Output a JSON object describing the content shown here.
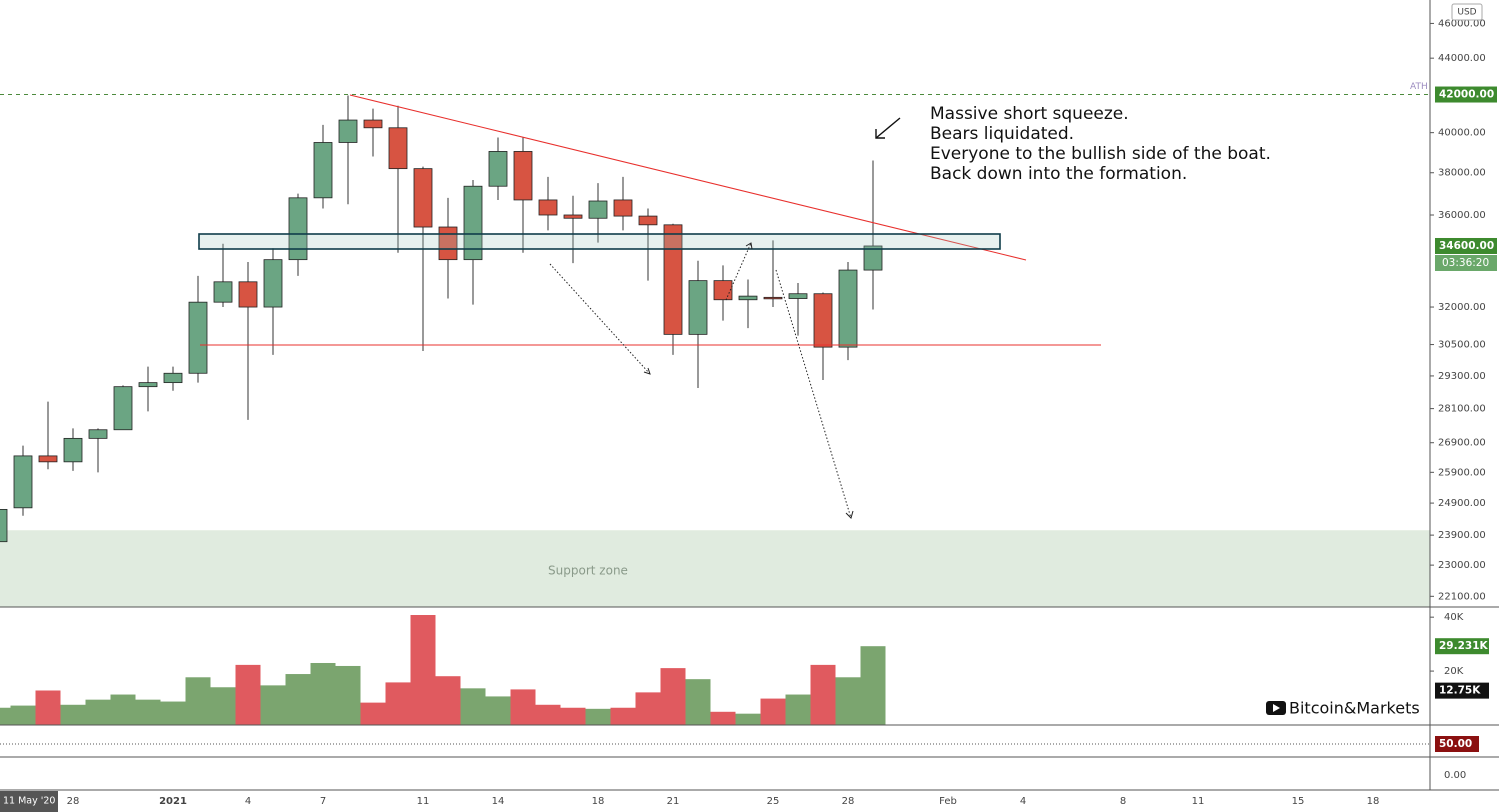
{
  "chart_data": {
    "type": "candlestick",
    "log_scale": true,
    "x": [
      "2020-12-25",
      "2020-12-26",
      "2020-12-27",
      "2020-12-28",
      "2020-12-29",
      "2020-12-30",
      "2020-12-31",
      "2021-01-01",
      "2021-01-02",
      "2021-01-03",
      "2021-01-04",
      "2021-01-05",
      "2021-01-06",
      "2021-01-07",
      "2021-01-08",
      "2021-01-09",
      "2021-01-10",
      "2021-01-11",
      "2021-01-12",
      "2021-01-13",
      "2021-01-14",
      "2021-01-15",
      "2021-01-16",
      "2021-01-17",
      "2021-01-18",
      "2021-01-19",
      "2021-01-20",
      "2021-01-21",
      "2021-01-22",
      "2021-01-23",
      "2021-01-24",
      "2021-01-25",
      "2021-01-26",
      "2021-01-27",
      "2021-01-28",
      "2021-01-29"
    ],
    "open": [
      23700,
      24750,
      26450,
      26250,
      27050,
      27350,
      28900,
      29050,
      29400,
      32200,
      33050,
      32000,
      34000,
      36800,
      39500,
      40650,
      40250,
      38200,
      35450,
      34000,
      37350,
      39050,
      36700,
      36000,
      35850,
      36700,
      35950,
      35550,
      30900,
      33100,
      32300,
      32400,
      32350,
      32550,
      30400,
      33550
    ],
    "high": [
      24800,
      26800,
      28350,
      27400,
      27400,
      28950,
      29650,
      29650,
      33300,
      34700,
      33900,
      34500,
      37000,
      40400,
      41950,
      41250,
      41400,
      38300,
      36800,
      37650,
      39750,
      39750,
      37800,
      36900,
      37500,
      37800,
      36300,
      35600,
      33950,
      33750,
      33150,
      34850,
      33000,
      32600,
      33900,
      38600
    ],
    "low": [
      23500,
      24500,
      26000,
      25950,
      25900,
      27350,
      28000,
      28750,
      29050,
      32000,
      27700,
      30100,
      33300,
      36300,
      36500,
      38800,
      34300,
      30250,
      32350,
      32100,
      36700,
      34300,
      35300,
      33850,
      34750,
      35300,
      33100,
      30100,
      28850,
      31450,
      31150,
      32000,
      30850,
      29150,
      29900,
      31900
    ],
    "close": [
      24700,
      26450,
      26250,
      27050,
      27350,
      28900,
      29050,
      29400,
      32200,
      33050,
      32000,
      34000,
      36800,
      39500,
      40650,
      40250,
      38200,
      35450,
      34000,
      37350,
      39050,
      36700,
      36000,
      35850,
      36650,
      35950,
      35550,
      30900,
      33100,
      32300,
      32450,
      32350,
      32550,
      30400,
      33550,
      34600
    ],
    "volume": [
      6400,
      7200,
      12800,
      7500,
      9400,
      11300,
      9400,
      8700,
      17700,
      14000,
      22300,
      14700,
      18900,
      23000,
      21900,
      8300,
      15800,
      40800,
      18100,
      13600,
      10600,
      13200,
      7500,
      6400,
      6000,
      6400,
      12100,
      21100,
      17000,
      4900,
      4200,
      9800,
      11300,
      22300,
      17700,
      29231
    ],
    "up_color": "#6ba583",
    "down_color": "#d75442",
    "volume_up_color": "#7ba56f",
    "volume_down_color": "#e05a5f",
    "ylim": [
      21800,
      47400
    ],
    "yticks": [
      {
        "value": 46000,
        "label": "46000.00"
      },
      {
        "value": 44000,
        "label": "44000.00"
      },
      {
        "value": 40000,
        "label": "40000.00"
      },
      {
        "value": 38000,
        "label": "38000.00"
      },
      {
        "value": 36000,
        "label": "36000.00"
      },
      {
        "value": 32000,
        "label": "32000.00"
      },
      {
        "value": 30500,
        "label": "30500.00"
      },
      {
        "value": 29300,
        "label": "29300.00"
      },
      {
        "value": 28100,
        "label": "28100.00"
      },
      {
        "value": 26900,
        "label": "26900.00"
      },
      {
        "value": 25900,
        "label": "25900.00"
      },
      {
        "value": 24900,
        "label": "24900.00"
      },
      {
        "value": 23900,
        "label": "23900.00"
      },
      {
        "value": 23000,
        "label": "23000.00"
      },
      {
        "value": 22100,
        "label": "22100.00"
      }
    ],
    "price_labels": [
      {
        "value": 42000,
        "label": "42000.00"
      },
      {
        "value": 34600,
        "label": "34600.00"
      }
    ],
    "support_zone": [
      21800,
      24050
    ],
    "volume_ylim": [
      0,
      43400
    ],
    "volume_yticks": [
      {
        "value": 40000,
        "label": "40K"
      },
      {
        "value": 20000,
        "label": "20K"
      }
    ],
    "volume_labels": [
      {
        "value": 29231,
        "label": "29.231K"
      },
      {
        "value": 12750,
        "label": "12.75K"
      }
    ],
    "oscillator_ylim": [
      0,
      100
    ],
    "oscillator_labels": [
      {
        "value": 50,
        "label": "50.00"
      },
      {
        "value": 0,
        "label": "0.00"
      }
    ],
    "xticks": [
      {
        "value": "2020-12-28",
        "label": "28"
      },
      {
        "value": "2021-01-01",
        "label": "2021"
      },
      {
        "value": "2021-01-04",
        "label": "4"
      },
      {
        "value": "2021-01-07",
        "label": "7"
      },
      {
        "value": "2021-01-11",
        "label": "11"
      },
      {
        "value": "2021-01-14",
        "label": "14"
      },
      {
        "value": "2021-01-18",
        "label": "18"
      },
      {
        "value": "2021-01-21",
        "label": "21"
      },
      {
        "value": "2021-01-25",
        "label": "25"
      },
      {
        "value": "2021-01-28",
        "label": "28"
      },
      {
        "value": "2021-02-01",
        "label": "Feb"
      },
      {
        "value": "2021-02-04",
        "label": "4"
      },
      {
        "value": "2021-02-08",
        "label": "8"
      },
      {
        "value": "2021-02-11",
        "label": "11"
      },
      {
        "value": "2021-02-15",
        "label": "15"
      },
      {
        "value": "2021-02-18",
        "label": "18"
      }
    ],
    "annotations": {
      "ath": "ATH",
      "note": [
        "Massive short squeeze.",
        "Bears liquidated.",
        "Everyone to the bullish side of the boat.",
        "Back down into the formation."
      ],
      "support": "Support zone",
      "currency": "USD",
      "countdown": "03:36:20",
      "date_cursor": "11 May '20",
      "brand": "Bitcoin&Markets"
    }
  }
}
